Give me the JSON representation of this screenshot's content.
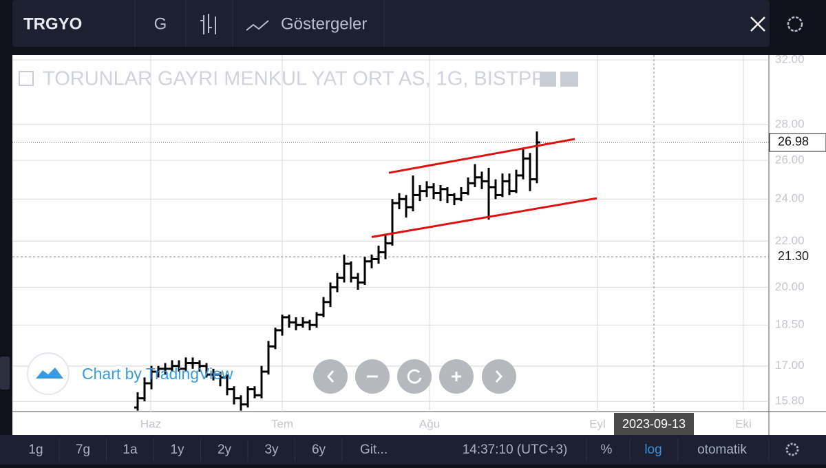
{
  "toolbar": {
    "symbol": "TRGYO",
    "interval": "G",
    "indicators": "Göstergeler"
  },
  "chart_data": {
    "type": "ohlc",
    "title": "TORUNLAR GAYRI MENKUL YAT ORT AS, 1G, BISTPP",
    "attribution": "Chart by TradingView",
    "log_scale": true,
    "grid": true,
    "color": "#000000",
    "ylim": [
      15.47,
      32.32
    ],
    "yticks": [
      {
        "value": 15.8,
        "label": "15.80"
      },
      {
        "value": 17,
        "label": "17.00"
      },
      {
        "value": 18.5,
        "label": "18.50"
      },
      {
        "value": 20,
        "label": "20.00"
      },
      {
        "value": 22,
        "label": "22.00"
      },
      {
        "value": 24,
        "label": "24.00"
      },
      {
        "value": 26,
        "label": "26.00"
      },
      {
        "value": 28,
        "label": "28.00"
      },
      {
        "value": 32,
        "label": "32.00"
      }
    ],
    "xlim": [
      -18.2,
      91.7
    ],
    "xticks": [
      {
        "value": 1.9,
        "label": "Haz"
      },
      {
        "value": 21,
        "label": "Tem"
      },
      {
        "value": 42.4,
        "label": "Ağu"
      },
      {
        "value": 66.8,
        "label": "Eyl"
      },
      {
        "value": 88,
        "label": "Eki"
      }
    ],
    "ohlc": [
      [
        15.6,
        16.1,
        15.5,
        15.9
      ],
      [
        15.9,
        16.6,
        15.8,
        16.4
      ],
      [
        16.4,
        17.0,
        16.2,
        16.8
      ],
      [
        16.8,
        17.0,
        16.6,
        16.9
      ],
      [
        16.9,
        17.1,
        16.7,
        16.9
      ],
      [
        16.9,
        17.2,
        16.8,
        17.0
      ],
      [
        17.0,
        17.2,
        16.8,
        16.9
      ],
      [
        16.9,
        17.3,
        16.8,
        17.1
      ],
      [
        17.1,
        17.3,
        16.9,
        17.1
      ],
      [
        17.1,
        17.2,
        16.8,
        17.0
      ],
      [
        17.0,
        17.1,
        16.6,
        16.7
      ],
      [
        16.7,
        16.9,
        16.5,
        16.7
      ],
      [
        16.7,
        16.8,
        16.3,
        16.6
      ],
      [
        16.6,
        16.7,
        16.0,
        16.2
      ],
      [
        16.2,
        16.3,
        15.7,
        15.9
      ],
      [
        15.9,
        16.0,
        15.5,
        15.7
      ],
      [
        15.7,
        16.3,
        15.6,
        16.2
      ],
      [
        16.2,
        16.3,
        15.9,
        16.0
      ],
      [
        16.0,
        17.0,
        15.9,
        16.8
      ],
      [
        16.8,
        17.9,
        16.7,
        17.7
      ],
      [
        17.7,
        18.4,
        17.6,
        18.3
      ],
      [
        18.3,
        18.9,
        18.1,
        18.8
      ],
      [
        18.8,
        18.9,
        18.4,
        18.6
      ],
      [
        18.6,
        18.8,
        18.3,
        18.5
      ],
      [
        18.5,
        18.8,
        18.4,
        18.6
      ],
      [
        18.6,
        18.7,
        18.3,
        18.5
      ],
      [
        18.5,
        19.0,
        18.4,
        18.9
      ],
      [
        18.9,
        19.6,
        18.8,
        19.4
      ],
      [
        19.4,
        20.2,
        19.2,
        20.0
      ],
      [
        20.0,
        20.6,
        19.8,
        20.4
      ],
      [
        20.4,
        21.4,
        20.2,
        21.0
      ],
      [
        21.0,
        21.1,
        20.2,
        20.4
      ],
      [
        20.4,
        20.6,
        19.9,
        20.2
      ],
      [
        20.2,
        21.3,
        20.1,
        21.1
      ],
      [
        21.1,
        21.4,
        20.8,
        21.2
      ],
      [
        21.2,
        21.8,
        21.0,
        21.5
      ],
      [
        21.5,
        22.3,
        21.2,
        21.9
      ],
      [
        21.9,
        24.0,
        21.8,
        23.8
      ],
      [
        23.8,
        24.3,
        23.5,
        24.0
      ],
      [
        24.0,
        24.2,
        23.1,
        23.6
      ],
      [
        23.6,
        25.2,
        23.4,
        24.2
      ],
      [
        24.2,
        24.7,
        23.9,
        24.4
      ],
      [
        24.4,
        24.9,
        24.1,
        24.6
      ],
      [
        24.6,
        24.8,
        24.0,
        24.3
      ],
      [
        24.3,
        24.7,
        23.9,
        24.5
      ],
      [
        24.5,
        24.6,
        23.8,
        24.2
      ],
      [
        24.2,
        24.3,
        23.7,
        24.0
      ],
      [
        24.0,
        24.6,
        23.9,
        24.3
      ],
      [
        24.3,
        25.1,
        24.2,
        24.8
      ],
      [
        24.8,
        25.8,
        24.6,
        25.1
      ],
      [
        25.1,
        25.4,
        24.5,
        24.9
      ],
      [
        24.9,
        25.6,
        23.0,
        24.6
      ],
      [
        24.6,
        25.0,
        24.0,
        24.2
      ],
      [
        24.2,
        25.3,
        24.1,
        24.9
      ],
      [
        24.9,
        25.3,
        24.2,
        24.4
      ],
      [
        24.4,
        25.5,
        24.3,
        25.2
      ],
      [
        25.2,
        26.6,
        25.0,
        26.1
      ],
      [
        26.1,
        26.4,
        24.4,
        25.0
      ],
      [
        25.0,
        27.6,
        24.8,
        26.98
      ]
    ],
    "last_price": 26.98,
    "drawings": [
      {
        "color": "#e01010",
        "x1": 36.5,
        "y1": 25.34,
        "x2": 63.5,
        "y2": 27.17
      },
      {
        "color": "#e01010",
        "x1": 34,
        "y1": 22.19,
        "x2": 66.7,
        "y2": 24.04
      }
    ],
    "crosshair": {
      "x": {
        "value": 75,
        "label": "2023-09-13"
      },
      "y": {
        "value": 21.3,
        "label": "21.30"
      }
    }
  },
  "bottom_bar": {
    "ranges": [
      "1g",
      "7g",
      "1a",
      "1y",
      "2y",
      "3y",
      "6y"
    ],
    "go_to": "Git...",
    "time": "14:37:10 (UTC+3)",
    "percent": "%",
    "log": "log",
    "auto": "otomatik"
  }
}
